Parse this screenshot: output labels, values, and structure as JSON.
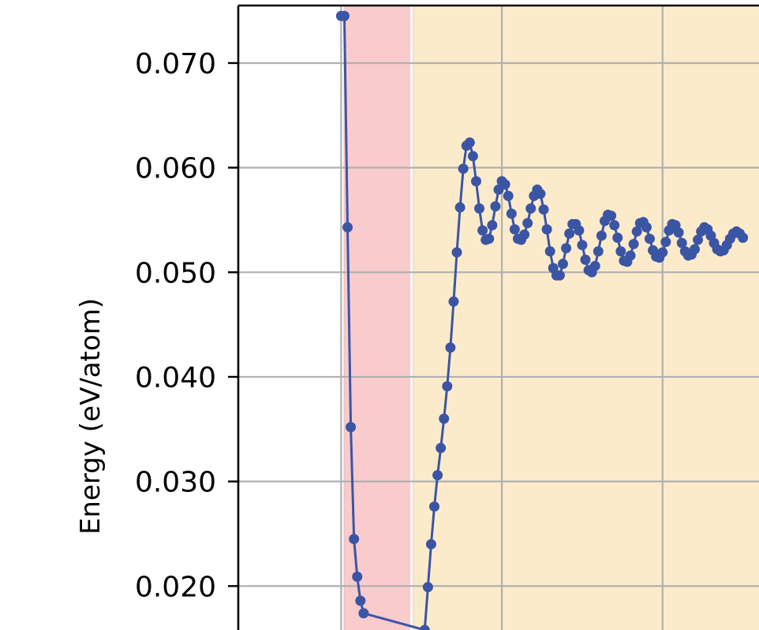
{
  "chart_data": {
    "type": "line",
    "title": "",
    "xlabel": "",
    "ylabel": "Energy (eV/atom)",
    "ylim": [
      0.0158,
      0.0755
    ],
    "xlim": [
      -12.8,
      52.0
    ],
    "grid": true,
    "y_ticks": [
      0.02,
      0.03,
      0.04,
      0.05,
      0.06,
      0.07
    ],
    "y_tick_labels": [
      "0.020",
      "0.030",
      "0.040",
      "0.050",
      "0.060",
      "0.070"
    ],
    "x_gridlines": [
      0,
      20,
      40
    ],
    "regions": [
      {
        "x0": 0.4,
        "x1": 8.6,
        "color": "#f9cbcc"
      },
      {
        "x0": 9.0,
        "x1": 52.0,
        "color": "#fcebcb"
      }
    ],
    "series": [
      {
        "color": "#3b55a5",
        "x": [
          0.0,
          0.4,
          0.8,
          1.2,
          1.6,
          2.0,
          2.4,
          2.8,
          10.4,
          10.8,
          11.2,
          11.6,
          12.0,
          12.4,
          12.8,
          13.2,
          13.6,
          14.0,
          14.4,
          14.8,
          15.2,
          15.6,
          16.0,
          16.4,
          16.8,
          17.2,
          17.6,
          18.0,
          18.4,
          18.8,
          19.2,
          19.6,
          20.0,
          20.4,
          20.8,
          21.2,
          21.6,
          22.0,
          22.4,
          22.8,
          23.2,
          23.6,
          24.0,
          24.4,
          24.8,
          25.2,
          25.6,
          26.0,
          26.4,
          26.8,
          27.2,
          27.6,
          28.0,
          28.4,
          28.8,
          29.2,
          29.6,
          30.0,
          30.4,
          30.8,
          31.2,
          31.6,
          32.0,
          32.4,
          32.8,
          33.2,
          33.6,
          34.0,
          34.4,
          34.8,
          35.2,
          35.6,
          36.0,
          36.4,
          36.8,
          37.2,
          37.6,
          38.0,
          38.4,
          38.8,
          39.2,
          39.6,
          40.0,
          40.4,
          40.8,
          41.2,
          41.6,
          42.0,
          42.4,
          42.8,
          43.2,
          43.6,
          44.0,
          44.4,
          44.8,
          45.2,
          45.6,
          46.0,
          46.4,
          46.8,
          47.2,
          47.6,
          48.0,
          48.4,
          48.8,
          49.2,
          49.6,
          50.0
        ],
        "y": [
          0.0745,
          0.0745,
          0.0543,
          0.0352,
          0.0245,
          0.0209,
          0.0186,
          0.0174,
          0.0158,
          0.0199,
          0.024,
          0.0276,
          0.0306,
          0.0332,
          0.036,
          0.0391,
          0.0428,
          0.0472,
          0.0519,
          0.0562,
          0.0599,
          0.0621,
          0.0624,
          0.0611,
          0.0587,
          0.0561,
          0.054,
          0.0531,
          0.0532,
          0.0545,
          0.0563,
          0.0579,
          0.0587,
          0.0584,
          0.0573,
          0.0556,
          0.0541,
          0.0532,
          0.0531,
          0.0536,
          0.0547,
          0.0561,
          0.0573,
          0.0579,
          0.0575,
          0.056,
          0.0541,
          0.052,
          0.0504,
          0.0497,
          0.0497,
          0.0508,
          0.0523,
          0.0537,
          0.0546,
          0.0546,
          0.054,
          0.0526,
          0.0512,
          0.0502,
          0.05,
          0.0506,
          0.052,
          0.0535,
          0.0549,
          0.0555,
          0.0554,
          0.0545,
          0.0533,
          0.052,
          0.0511,
          0.051,
          0.0516,
          0.0527,
          0.0539,
          0.0547,
          0.0548,
          0.0543,
          0.0532,
          0.0521,
          0.0515,
          0.0514,
          0.0519,
          0.0529,
          0.054,
          0.0546,
          0.0545,
          0.0538,
          0.0528,
          0.052,
          0.0516,
          0.0517,
          0.0522,
          0.0531,
          0.0539,
          0.0543,
          0.0541,
          0.0535,
          0.0528,
          0.0522,
          0.052,
          0.0521,
          0.0526,
          0.0532,
          0.0537,
          0.0539,
          0.0537,
          0.0533
        ]
      }
    ]
  },
  "colors": {
    "line": "#3b55a5",
    "grid": "#b0b0b0",
    "axis": "#000000",
    "region_a": "#f9cbcc",
    "region_b": "#fcebcb"
  }
}
